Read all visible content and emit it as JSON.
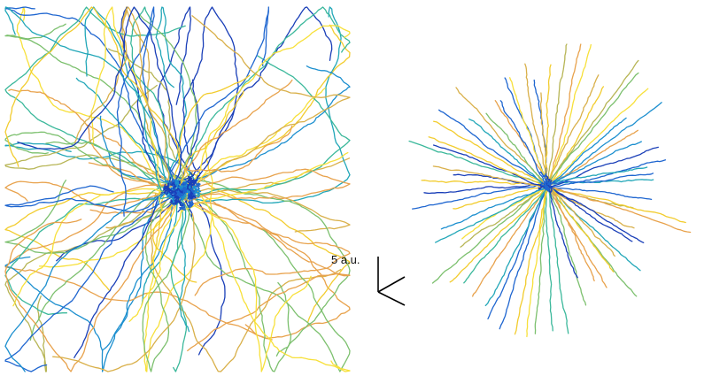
{
  "scale_bar": {
    "label": "5 a.u."
  },
  "colors": {
    "trajectory_palette": [
      "#1a3fb8",
      "#1f66d0",
      "#1c8fcf",
      "#22a7b8",
      "#3bb89b",
      "#7cc06e",
      "#b7b555",
      "#d9b04a",
      "#e8a24c",
      "#f2cc2e",
      "#f7e03a"
    ],
    "scale_bar_stroke": "#000000"
  },
  "panels": [
    {
      "name": "left-trajectory-panel",
      "description_shown": ""
    },
    {
      "name": "right-trajectory-panel",
      "description_shown": ""
    }
  ]
}
